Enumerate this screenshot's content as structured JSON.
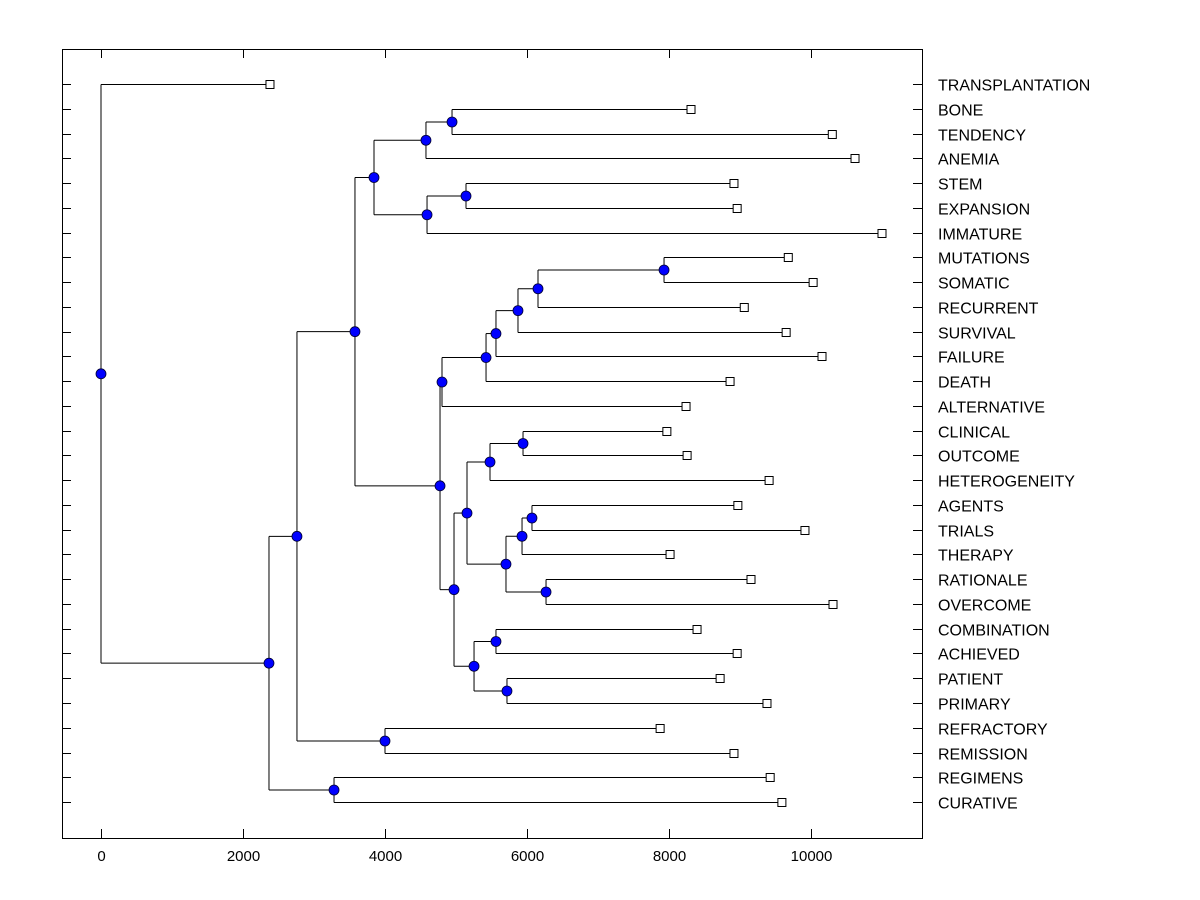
{
  "chart_data": {
    "type": "dendrogram",
    "title": "",
    "xlabel": "",
    "ylabel": "",
    "xlim": [
      -700,
      11500
    ],
    "xticks": [
      0,
      2000,
      4000,
      6000,
      8000,
      10000
    ],
    "xtick_labels": [
      "0",
      "2000",
      "4000",
      "6000",
      "8000",
      "10000"
    ],
    "grid": false,
    "colors": {
      "node_fill": "#0000ff",
      "line": "#000000",
      "leaf_fill": "#ffffff"
    },
    "leaves": [
      {
        "label": "TRANSPLANTATION",
        "x": 2380
      },
      {
        "label": "BONE",
        "x": 8310
      },
      {
        "label": "TENDENCY",
        "x": 10300
      },
      {
        "label": "ANEMIA",
        "x": 10620
      },
      {
        "label": "STEM",
        "x": 8915
      },
      {
        "label": "EXPANSION",
        "x": 8960
      },
      {
        "label": "IMMATURE",
        "x": 11000
      },
      {
        "label": "MUTATIONS",
        "x": 9680
      },
      {
        "label": "SOMATIC",
        "x": 10030
      },
      {
        "label": "RECURRENT",
        "x": 9060
      },
      {
        "label": "SURVIVAL",
        "x": 9650
      },
      {
        "label": "FAILURE",
        "x": 10155
      },
      {
        "label": "DEATH",
        "x": 8860
      },
      {
        "label": "ALTERNATIVE",
        "x": 8240
      },
      {
        "label": "CLINICAL",
        "x": 7970
      },
      {
        "label": "OUTCOME",
        "x": 8255
      },
      {
        "label": "HETEROGENEITY",
        "x": 9410
      },
      {
        "label": "AGENTS",
        "x": 8970
      },
      {
        "label": "TRIALS",
        "x": 9915
      },
      {
        "label": "THERAPY",
        "x": 8015
      },
      {
        "label": "RATIONALE",
        "x": 9155
      },
      {
        "label": "OVERCOME",
        "x": 10310
      },
      {
        "label": "COMBINATION",
        "x": 8395
      },
      {
        "label": "ACHIEVED",
        "x": 8960
      },
      {
        "label": "PATIENT",
        "x": 8720
      },
      {
        "label": "PRIMARY",
        "x": 9380
      },
      {
        "label": "REFRACTORY",
        "x": 7875
      },
      {
        "label": "REMISSION",
        "x": 8915
      },
      {
        "label": "REGIMENS",
        "x": 9425
      },
      {
        "label": "CURATIVE",
        "x": 9590
      }
    ],
    "merges": [
      {
        "id": "n_bone_tend",
        "x": 4944,
        "children": [
          "BONE",
          "TENDENCY"
        ]
      },
      {
        "id": "n_anemia",
        "x": 4577,
        "children": [
          "n_bone_tend",
          "ANEMIA"
        ]
      },
      {
        "id": "n_stem_exp",
        "x": 5141,
        "children": [
          "STEM",
          "EXPANSION"
        ]
      },
      {
        "id": "n_immature",
        "x": 4592,
        "children": [
          "n_stem_exp",
          "IMMATURE"
        ]
      },
      {
        "id": "n_upper",
        "x": 3845,
        "children": [
          "n_anemia",
          "n_immature"
        ]
      },
      {
        "id": "n_mut_som",
        "x": 7930,
        "children": [
          "MUTATIONS",
          "SOMATIC"
        ]
      },
      {
        "id": "n_recur",
        "x": 6155,
        "children": [
          "n_mut_som",
          "RECURRENT"
        ]
      },
      {
        "id": "n_surv",
        "x": 5873,
        "children": [
          "n_recur",
          "SURVIVAL"
        ]
      },
      {
        "id": "n_fail",
        "x": 5563,
        "children": [
          "n_surv",
          "FAILURE"
        ]
      },
      {
        "id": "n_death",
        "x": 5423,
        "children": [
          "n_fail",
          "DEATH"
        ]
      },
      {
        "id": "n_alt",
        "x": 4803,
        "children": [
          "n_death",
          "ALTERNATIVE"
        ]
      },
      {
        "id": "n_clin_out",
        "x": 5944,
        "children": [
          "CLINICAL",
          "OUTCOME"
        ]
      },
      {
        "id": "n_hetero",
        "x": 5479,
        "children": [
          "n_clin_out",
          "HETEROGENEITY"
        ]
      },
      {
        "id": "n_agents_trials",
        "x": 6070,
        "children": [
          "AGENTS",
          "TRIALS"
        ]
      },
      {
        "id": "n_therapy",
        "x": 5930,
        "children": [
          "n_agents_trials",
          "THERAPY"
        ]
      },
      {
        "id": "n_rat_over",
        "x": 6268,
        "children": [
          "RATIONALE",
          "OVERCOME"
        ]
      },
      {
        "id": "n_therapy_rat",
        "x": 5704,
        "children": [
          "n_therapy",
          "n_rat_over"
        ]
      },
      {
        "id": "n_mid_a",
        "x": 5155,
        "children": [
          "n_hetero",
          "n_therapy_rat"
        ]
      },
      {
        "id": "n_comb_ach",
        "x": 5563,
        "children": [
          "COMBINATION",
          "ACHIEVED"
        ]
      },
      {
        "id": "n_pat_prim",
        "x": 5718,
        "children": [
          "PATIENT",
          "PRIMARY"
        ]
      },
      {
        "id": "n_mid_b",
        "x": 5254,
        "children": [
          "n_comb_ach",
          "n_pat_prim"
        ]
      },
      {
        "id": "n_mid",
        "x": 4972,
        "children": [
          "n_mid_a",
          "n_mid_b"
        ]
      },
      {
        "id": "n_center",
        "x": 4775,
        "children": [
          "n_alt",
          "n_mid"
        ]
      },
      {
        "id": "n_big",
        "x": 3577,
        "children": [
          "n_upper",
          "n_center"
        ]
      },
      {
        "id": "n_ref_rem",
        "x": 4000,
        "children": [
          "REFRACTORY",
          "REMISSION"
        ]
      },
      {
        "id": "n_big2",
        "x": 2760,
        "children": [
          "n_big",
          "n_ref_rem"
        ]
      },
      {
        "id": "n_reg_cur",
        "x": 3282,
        "children": [
          "REGIMENS",
          "CURATIVE"
        ]
      },
      {
        "id": "n_lower",
        "x": 2366,
        "children": [
          "n_big2",
          "n_reg_cur"
        ]
      },
      {
        "id": "n_root",
        "x": 0,
        "children": [
          "TRANSPLANTATION",
          "n_lower"
        ]
      }
    ]
  }
}
